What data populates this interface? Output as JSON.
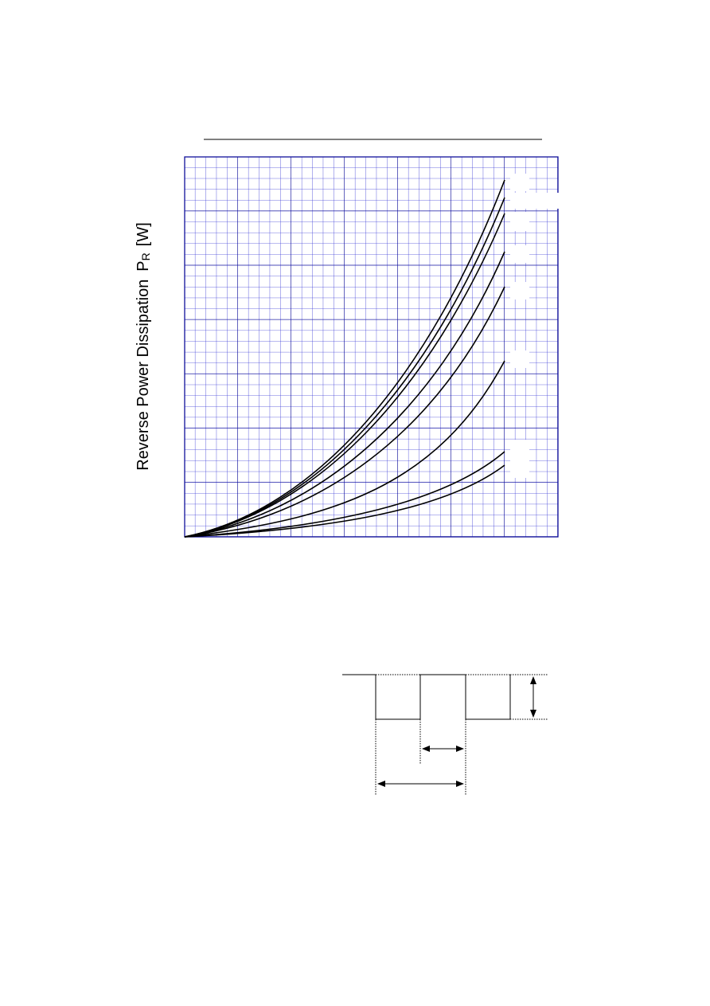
{
  "y_axis_label": {
    "text": "Reverse Power Dissipation",
    "symbol": "P",
    "subscript": "R",
    "unit": "[W]"
  }
}
